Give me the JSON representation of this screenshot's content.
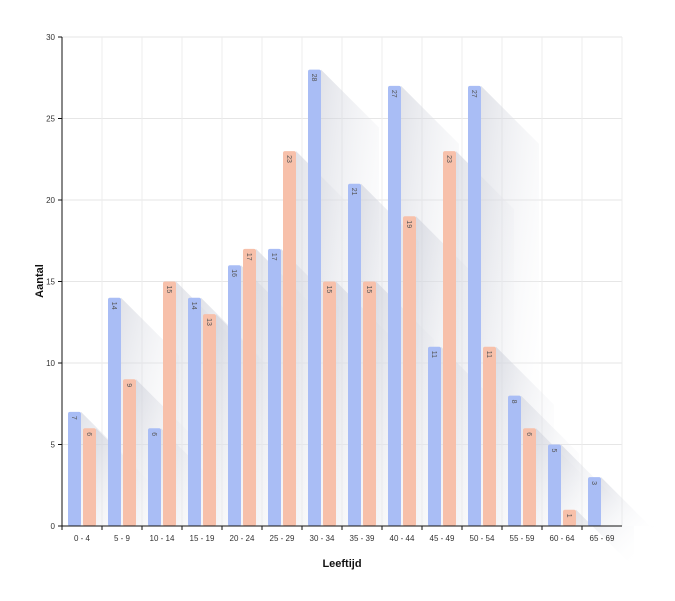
{
  "chart_data": {
    "type": "bar",
    "title": "",
    "xlabel": "Leeftijd",
    "ylabel": "Aantal",
    "ylim": [
      0,
      30
    ],
    "yticks": [
      0,
      5,
      10,
      15,
      20,
      25,
      30
    ],
    "grid": true,
    "legend": "none",
    "categories": [
      "0 - 4",
      "5 - 9",
      "10 - 14",
      "15 - 19",
      "20 - 24",
      "25 - 29",
      "30 - 34",
      "35 - 39",
      "40 - 44",
      "45 - 49",
      "50 - 54",
      "55 - 59",
      "60 - 64",
      "65 - 69"
    ],
    "series": [
      {
        "color": "#a9bdf5",
        "values": [
          7,
          14,
          6,
          14,
          16,
          17,
          28,
          21,
          27,
          11,
          27,
          8,
          5,
          3
        ]
      },
      {
        "color": "#f7c0aa",
        "values": [
          6,
          9,
          15,
          13,
          17,
          23,
          15,
          15,
          19,
          23,
          11,
          6,
          1,
          null
        ]
      }
    ]
  }
}
